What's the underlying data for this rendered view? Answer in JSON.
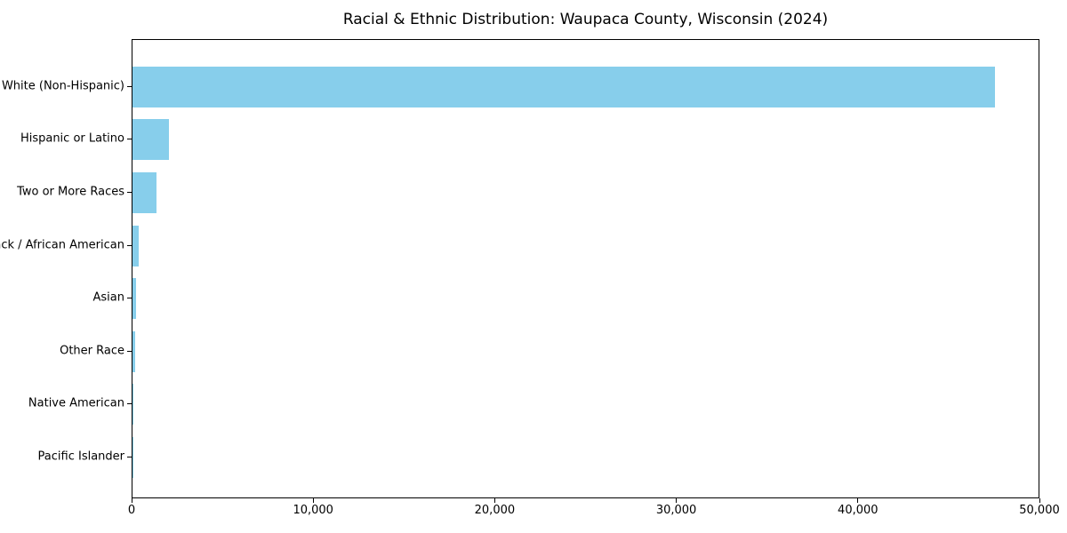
{
  "figure": {
    "title": "Racial & Ethnic Distribution: Waupaca County, Wisconsin (2024)",
    "background_color": "#ffffff",
    "spine_color": "#000000",
    "text_color": "#000000"
  },
  "chart_data": {
    "type": "bar",
    "orientation": "horizontal",
    "title": "Racial & Ethnic Distribution: Waupaca County, Wisconsin (2024)",
    "categories": [
      "White (Non-Hispanic)",
      "Hispanic or Latino",
      "Two or More Races",
      "Black / African American",
      "Asian",
      "Other Race",
      "Native American",
      "Pacific Islander"
    ],
    "values": [
      47500,
      2000,
      1300,
      350,
      175,
      150,
      60,
      10
    ],
    "bar_color": "#87CEEB",
    "xlabel": "",
    "ylabel": "",
    "xlim": [
      0,
      50000
    ],
    "x_ticks": [
      0,
      10000,
      20000,
      30000,
      40000,
      50000
    ],
    "x_tick_labels": [
      "0",
      "10,000",
      "20,000",
      "30,000",
      "40,000",
      "50,000"
    ],
    "grid": false,
    "legend": null,
    "value_labels_shown": false
  }
}
